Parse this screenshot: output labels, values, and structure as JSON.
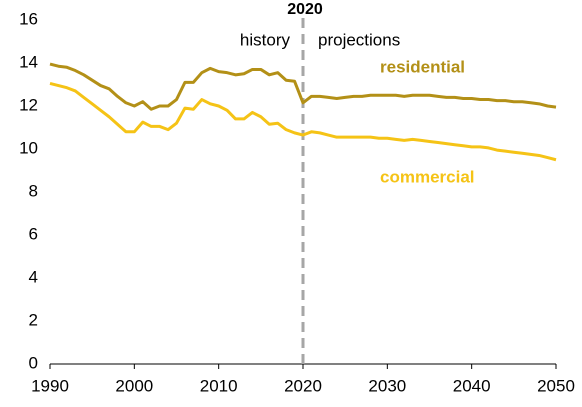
{
  "chart_data": {
    "type": "line",
    "x": [
      1990,
      1991,
      1992,
      1993,
      1994,
      1995,
      1996,
      1997,
      1998,
      1999,
      2000,
      2001,
      2002,
      2003,
      2004,
      2005,
      2006,
      2007,
      2008,
      2009,
      2010,
      2011,
      2012,
      2013,
      2014,
      2015,
      2016,
      2017,
      2018,
      2019,
      2020,
      2021,
      2022,
      2023,
      2024,
      2025,
      2026,
      2027,
      2028,
      2029,
      2030,
      2031,
      2032,
      2033,
      2034,
      2035,
      2036,
      2037,
      2038,
      2039,
      2040,
      2041,
      2042,
      2043,
      2044,
      2045,
      2046,
      2047,
      2048,
      2049,
      2050
    ],
    "series": [
      {
        "name": "residential",
        "color": "#b39017",
        "values": [
          13.95,
          13.85,
          13.8,
          13.65,
          13.45,
          13.2,
          12.95,
          12.8,
          12.45,
          12.15,
          12.0,
          12.2,
          11.85,
          12.0,
          12.0,
          12.3,
          13.1,
          13.1,
          13.55,
          13.75,
          13.6,
          13.55,
          13.45,
          13.5,
          13.7,
          13.7,
          13.45,
          13.55,
          13.2,
          13.15,
          12.15,
          12.45,
          12.45,
          12.4,
          12.35,
          12.4,
          12.45,
          12.45,
          12.5,
          12.5,
          12.5,
          12.5,
          12.45,
          12.5,
          12.5,
          12.5,
          12.45,
          12.4,
          12.4,
          12.35,
          12.35,
          12.3,
          12.3,
          12.25,
          12.25,
          12.2,
          12.2,
          12.15,
          12.1,
          12.0,
          11.95
        ]
      },
      {
        "name": "commercial",
        "color": "#f5c316",
        "values": [
          13.05,
          12.95,
          12.85,
          12.7,
          12.4,
          12.1,
          11.8,
          11.5,
          11.15,
          10.8,
          10.8,
          11.25,
          11.05,
          11.05,
          10.9,
          11.2,
          11.9,
          11.85,
          12.3,
          12.1,
          12.0,
          11.8,
          11.4,
          11.4,
          11.7,
          11.5,
          11.15,
          11.2,
          10.9,
          10.75,
          10.65,
          10.8,
          10.75,
          10.65,
          10.55,
          10.55,
          10.55,
          10.55,
          10.55,
          10.5,
          10.5,
          10.45,
          10.4,
          10.45,
          10.4,
          10.35,
          10.3,
          10.25,
          10.2,
          10.15,
          10.1,
          10.1,
          10.05,
          9.95,
          9.9,
          9.85,
          9.8,
          9.75,
          9.7,
          9.6,
          9.5
        ]
      }
    ],
    "xlim": [
      1990,
      2050
    ],
    "xticks": [
      1990,
      2000,
      2010,
      2020,
      2030,
      2040,
      2050
    ],
    "ylim": [
      0,
      16
    ],
    "yticks": [
      0,
      2,
      4,
      6,
      8,
      10,
      12,
      14,
      16
    ],
    "grid": false,
    "divider": 2020,
    "annotations": {
      "left": "history",
      "right": "projections"
    }
  }
}
